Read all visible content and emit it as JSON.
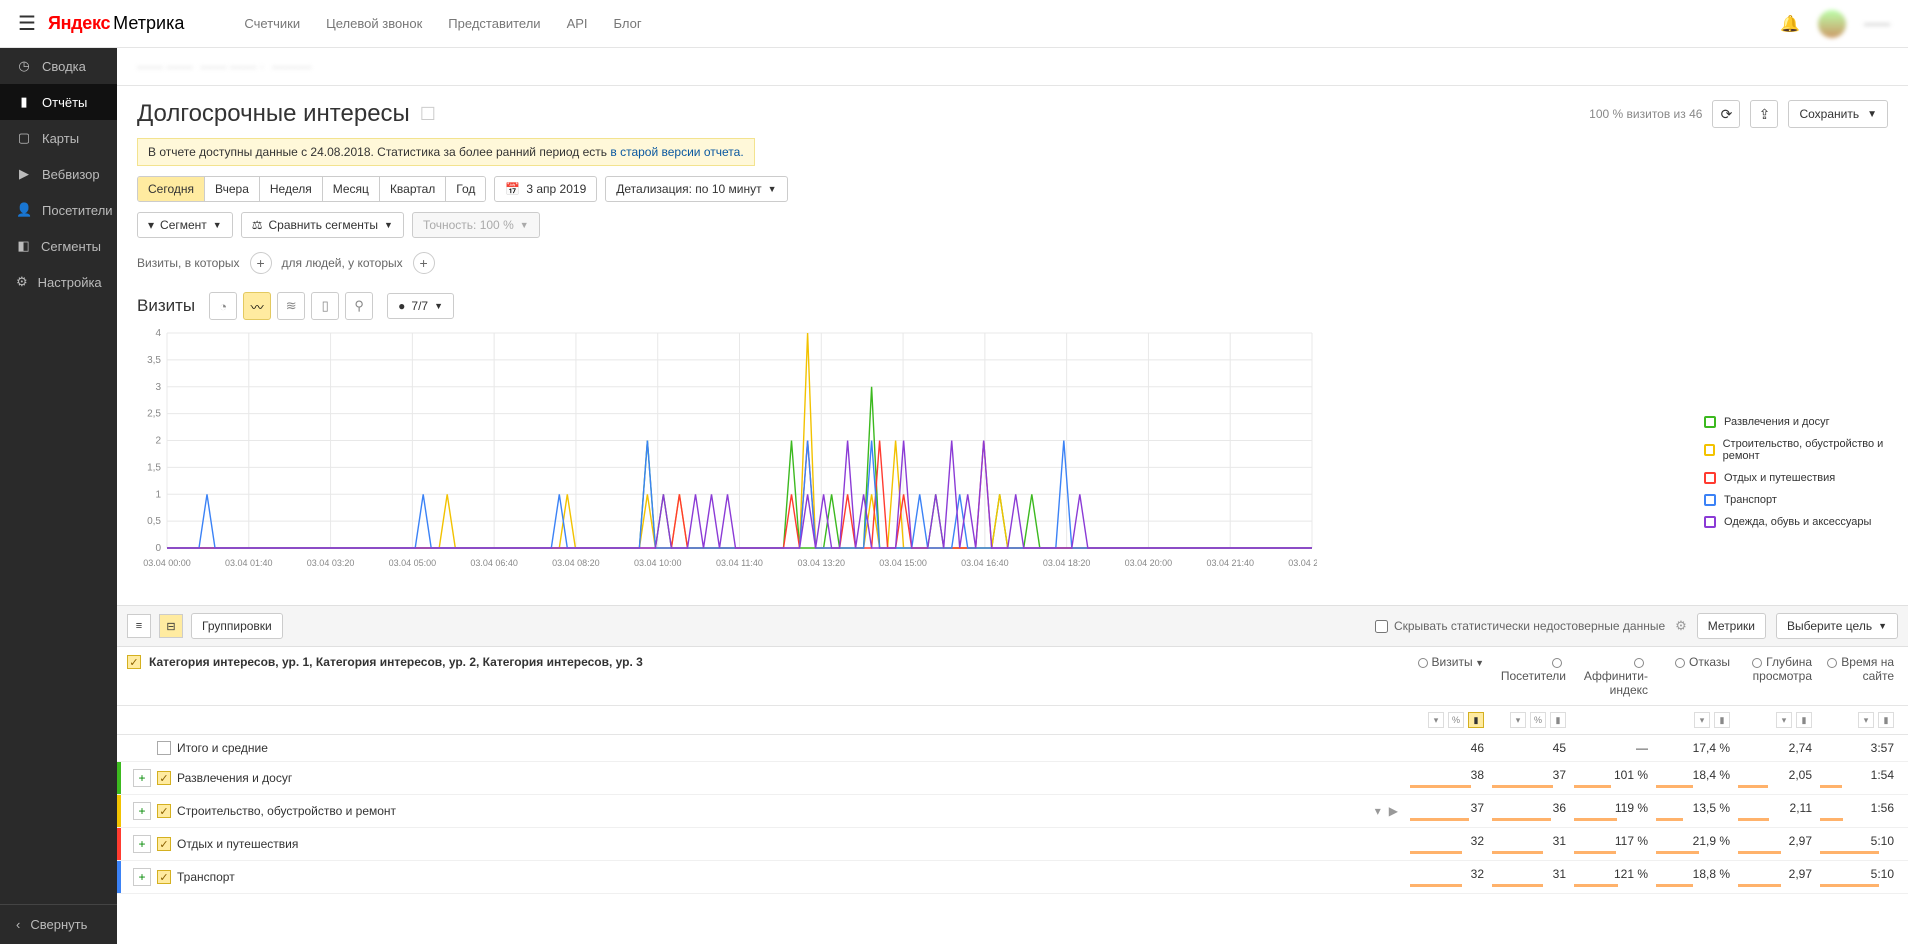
{
  "topnav": [
    "Счетчики",
    "Целевой звонок",
    "Представители",
    "API",
    "Блог"
  ],
  "logo": {
    "y": "Яндекс",
    "m": "Метрика"
  },
  "username": "——",
  "sidebar": {
    "items": [
      {
        "icon": "◷",
        "label": "Сводка"
      },
      {
        "icon": "▮",
        "label": "Отчёты",
        "active": true
      },
      {
        "icon": "▢",
        "label": "Карты"
      },
      {
        "icon": "▶",
        "label": "Вебвизор"
      },
      {
        "icon": "👤",
        "label": "Посетители"
      },
      {
        "icon": "◧",
        "label": "Сегменты"
      },
      {
        "icon": "⚙",
        "label": "Настройка"
      }
    ],
    "collapse": "Свернуть"
  },
  "crumb": [
    "—— ——",
    "—— —— ·",
    "———"
  ],
  "page_title": "Долгосрочные интересы",
  "stat_note": "100 % визитов из 46",
  "save_label": "Сохранить",
  "notice": {
    "text": "В отчете доступны данные с 24.08.2018. Статистика за более ранний период есть ",
    "link": "в старой версии отчета."
  },
  "period": {
    "items": [
      "Сегодня",
      "Вчера",
      "Неделя",
      "Месяц",
      "Квартал",
      "Год"
    ],
    "active": 0
  },
  "date": "3 апр 2019",
  "detail": "Детализация: по 10 минут",
  "segment": "Сегмент",
  "compare": "Сравнить сегменты",
  "precision": "Точность: 100 %",
  "filter1": "Визиты, в которых",
  "filter2": "для людей, у которых",
  "chart_title": "Визиты",
  "series_dd": "7/7",
  "chart": {
    "type": "line",
    "ylim": [
      0,
      4
    ],
    "ytick_step": 0.5,
    "background_color": "#ffffff",
    "grid_color": "#e8e8e8",
    "xlabels": [
      "03.04 00:00",
      "03.04 01:40",
      "03.04 03:20",
      "03.04 05:00",
      "03.04 06:40",
      "03.04 08:20",
      "03.04 10:00",
      "03.04 11:40",
      "03.04 13:20",
      "03.04 15:00",
      "03.04 16:40",
      "03.04 18:20",
      "03.04 20:00",
      "03.04 21:40",
      "03.04 23:20"
    ],
    "n": 144,
    "series": [
      {
        "name": "Развлечения и досуг",
        "color": "#3cb91f",
        "peaks": [
          [
            60,
            2
          ],
          [
            62,
            1
          ],
          [
            78,
            2
          ],
          [
            83,
            1
          ],
          [
            88,
            3
          ],
          [
            96,
            1
          ],
          [
            104,
            1
          ],
          [
            108,
            1
          ]
        ]
      },
      {
        "name": "Строительство, обустройство и ремонт",
        "color": "#f2c200",
        "peaks": [
          [
            35,
            1
          ],
          [
            50,
            1
          ],
          [
            60,
            1
          ],
          [
            64,
            1
          ],
          [
            80,
            4
          ],
          [
            88,
            1
          ],
          [
            91,
            2
          ],
          [
            104,
            1
          ]
        ]
      },
      {
        "name": "Отдых и путешествия",
        "color": "#ff3b30",
        "peaks": [
          [
            64,
            1
          ],
          [
            78,
            1
          ],
          [
            80,
            2
          ],
          [
            85,
            1
          ],
          [
            89,
            2
          ],
          [
            92,
            1
          ],
          [
            102,
            2
          ]
        ]
      },
      {
        "name": "Транспорт",
        "color": "#3b82f6",
        "peaks": [
          [
            5,
            1
          ],
          [
            32,
            1
          ],
          [
            49,
            1
          ],
          [
            60,
            2
          ],
          [
            80,
            2
          ],
          [
            88,
            2
          ],
          [
            94,
            1
          ],
          [
            99,
            1
          ],
          [
            112,
            2
          ]
        ]
      },
      {
        "name": "Одежда, обувь и аксессуары",
        "color": "#8b3bd6",
        "peaks": [
          [
            62,
            1
          ],
          [
            66,
            1
          ],
          [
            68,
            1
          ],
          [
            70,
            1
          ],
          [
            80,
            1
          ],
          [
            82,
            1
          ],
          [
            85,
            2
          ],
          [
            87,
            1
          ],
          [
            92,
            2
          ],
          [
            96,
            1
          ],
          [
            98,
            2
          ],
          [
            100,
            1
          ],
          [
            102,
            2
          ],
          [
            106,
            1
          ],
          [
            114,
            1
          ]
        ]
      }
    ]
  },
  "tabletools": {
    "group": "Группировки",
    "hide": "Скрывать статистически недостоверные данные",
    "metrics": "Метрики",
    "goal": "Выберите цель"
  },
  "thead": {
    "dim": "Категория интересов, ур. 1, Категория интересов, ур. 2, Категория интересов, ур. 3",
    "cols": [
      "Визиты",
      "Посетители",
      "Аффинити-индекс",
      "Отказы",
      "Глубина просмотра",
      "Время на сайте"
    ]
  },
  "rows": [
    {
      "label": "Итого и средние",
      "total": true,
      "vals": [
        "46",
        "45",
        "—",
        "17,4 %",
        "2,74",
        "3:57"
      ]
    },
    {
      "label": "Развлечения и досуг",
      "color": "#3cb91f",
      "vals": [
        "38",
        "37",
        "101 %",
        "18,4 %",
        "2,05",
        "1:54"
      ],
      "bars": [
        82,
        82,
        50,
        50,
        40,
        30
      ]
    },
    {
      "label": "Строительство, обустройство и ремонт",
      "color": "#f2c200",
      "vals": [
        "37",
        "36",
        "119 %",
        "13,5 %",
        "2,11",
        "1:56"
      ],
      "bars": [
        80,
        80,
        58,
        36,
        42,
        31
      ],
      "hover": true
    },
    {
      "label": "Отдых и путешествия",
      "color": "#ff3b30",
      "vals": [
        "32",
        "31",
        "117 %",
        "21,9 %",
        "2,97",
        "5:10"
      ],
      "bars": [
        70,
        69,
        57,
        58,
        58,
        80
      ]
    },
    {
      "label": "Транспорт",
      "color": "#3b82f6",
      "vals": [
        "32",
        "31",
        "121 %",
        "18,8 %",
        "2,97",
        "5:10"
      ],
      "bars": [
        70,
        69,
        59,
        50,
        58,
        80
      ]
    }
  ]
}
